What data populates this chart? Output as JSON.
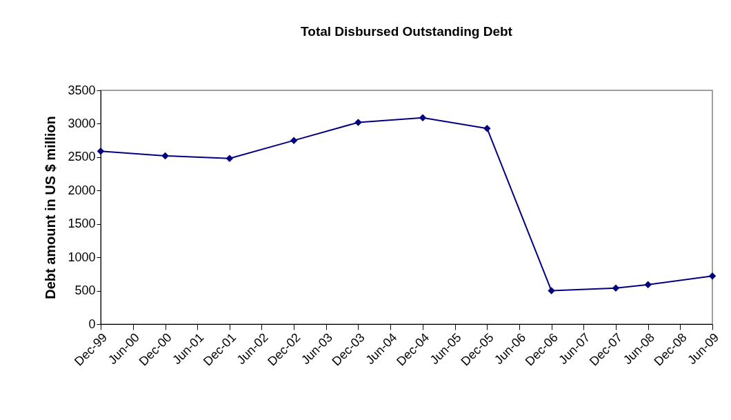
{
  "chart_data": {
    "type": "line",
    "title": "Total Disbursed Outstanding Debt",
    "ylabel": "Debt amount in US $ million",
    "x": [
      "1999-12",
      "2000-12",
      "2001-12",
      "2002-12",
      "2003-12",
      "2004-12",
      "2005-12",
      "2006-12",
      "2007-12",
      "2008-06",
      "2009-06"
    ],
    "series": [
      {
        "color": "#000080",
        "values": [
          2590,
          2520,
          2480,
          2750,
          3020,
          3090,
          2930,
          500,
          540,
          590,
          720
        ]
      }
    ],
    "xlim": [
      "1999-12",
      "2009-06"
    ],
    "xticks": [
      {
        "value": "1999-12",
        "label": "Dec-99"
      },
      {
        "value": "2000-06",
        "label": "Jun-00"
      },
      {
        "value": "2000-12",
        "label": "Dec-00"
      },
      {
        "value": "2001-06",
        "label": "Jun-01"
      },
      {
        "value": "2001-12",
        "label": "Dec-01"
      },
      {
        "value": "2002-06",
        "label": "Jun-02"
      },
      {
        "value": "2002-12",
        "label": "Dec-02"
      },
      {
        "value": "2003-06",
        "label": "Jun-03"
      },
      {
        "value": "2003-12",
        "label": "Dec-03"
      },
      {
        "value": "2004-06",
        "label": "Jun-04"
      },
      {
        "value": "2004-12",
        "label": "Dec-04"
      },
      {
        "value": "2005-06",
        "label": "Jun-05"
      },
      {
        "value": "2005-12",
        "label": "Dec-05"
      },
      {
        "value": "2006-06",
        "label": "Jun-06"
      },
      {
        "value": "2006-12",
        "label": "Dec-06"
      },
      {
        "value": "2007-06",
        "label": "Jun-07"
      },
      {
        "value": "2007-12",
        "label": "Dec-07"
      },
      {
        "value": "2008-06",
        "label": "Jun-08"
      },
      {
        "value": "2008-12",
        "label": "Dec-08"
      },
      {
        "value": "2009-06",
        "label": "Jun-09"
      }
    ],
    "ylim": [
      0,
      3500
    ],
    "yticks": [
      0,
      500,
      1000,
      1500,
      2000,
      2500,
      3000,
      3500
    ],
    "grid": false,
    "marker": "diamond",
    "line_style": "solid"
  }
}
